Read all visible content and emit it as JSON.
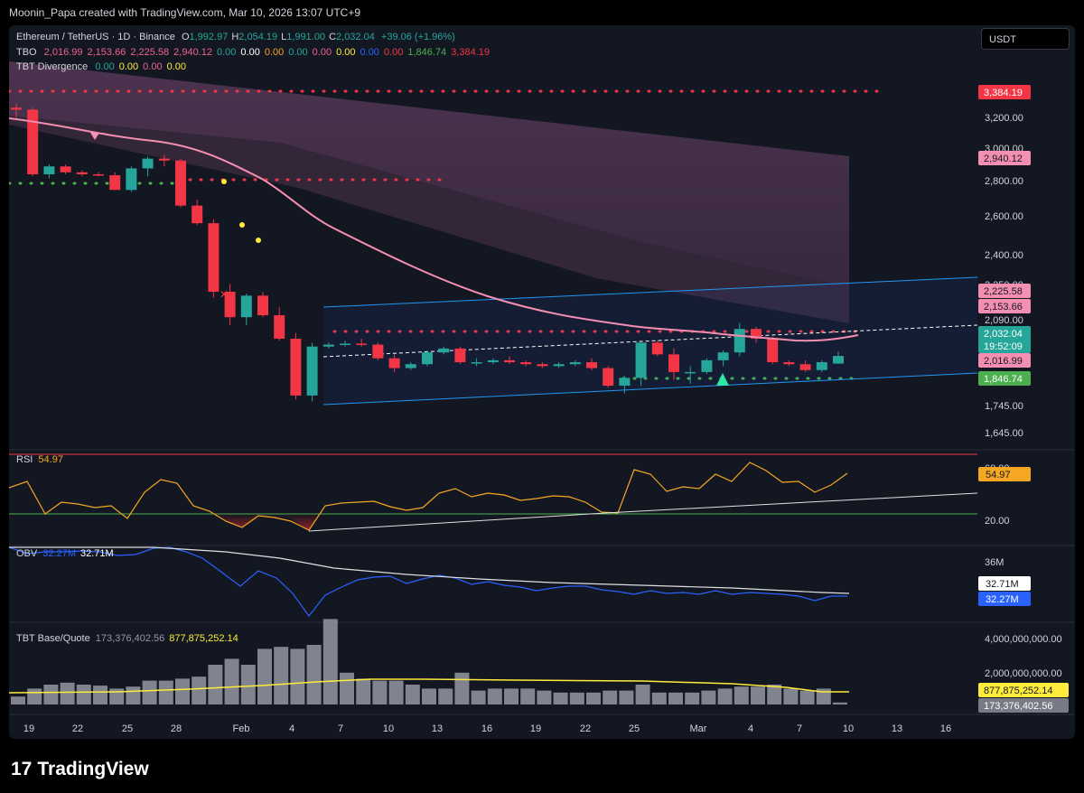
{
  "header": {
    "caption": "Moonin_Papa created with TradingView.com, Mar 10, 2026 13:07 UTC+9",
    "currency_button": "USDT"
  },
  "legend": {
    "symbol": "Ethereum / TetherUS · 1D · Binance",
    "ohlc": [
      {
        "k": "O",
        "v": "1,992.97"
      },
      {
        "k": "H",
        "v": "2,054.19"
      },
      {
        "k": "L",
        "v": "1,991.00"
      },
      {
        "k": "C",
        "v": "2,032.04"
      }
    ],
    "change": "+39.06 (+1.96%)",
    "tbo_label": "TBO",
    "tbo_values": [
      {
        "v": "2,016.99",
        "c": "#f06292"
      },
      {
        "v": "2,153.66",
        "c": "#f06292"
      },
      {
        "v": "2,225.58",
        "c": "#f06292"
      },
      {
        "v": "2,940.12",
        "c": "#f06292"
      },
      {
        "v": "0.00",
        "c": "#26a69a"
      },
      {
        "v": "0.00",
        "c": "#ffffff"
      },
      {
        "v": "0.00",
        "c": "#f5a623"
      },
      {
        "v": "0.00",
        "c": "#26a69a"
      },
      {
        "v": "0.00",
        "c": "#f06292"
      },
      {
        "v": "0.00",
        "c": "#ffeb3b"
      },
      {
        "v": "0.00",
        "c": "#2962ff"
      },
      {
        "v": "0.00",
        "c": "#f23645"
      },
      {
        "v": "1,846.74",
        "c": "#4caf50"
      },
      {
        "v": "3,384.19",
        "c": "#f23645"
      }
    ],
    "div_label": "TBT Divergence",
    "div_values": [
      {
        "v": "0.00",
        "c": "#26a69a"
      },
      {
        "v": "0.00",
        "c": "#ffeb3b"
      },
      {
        "v": "0.00",
        "c": "#f06292"
      },
      {
        "v": "0.00",
        "c": "#ffeb3b"
      }
    ]
  },
  "price_axis": {
    "ticks": [
      "3,200.00",
      "3,000.00",
      "2,800.00",
      "2,600.00",
      "2,400.00",
      "2,250.00",
      "2,090.00",
      "1,745.00",
      "1,645.00"
    ],
    "badges": [
      {
        "label": "3,384.19",
        "bg": "#f23645",
        "fg": "#ffffff"
      },
      {
        "label": "2,940.12",
        "bg": "#f48fb1",
        "fg": "#131722"
      },
      {
        "label": "2,225.58",
        "bg": "#f48fb1",
        "fg": "#131722"
      },
      {
        "label": "2,153.66",
        "bg": "#f48fb1",
        "fg": "#131722"
      },
      {
        "label": "2,032.04",
        "bg": "#26a69a",
        "fg": "#ffffff",
        "sub": "19:52:09"
      },
      {
        "label": "2,016.99",
        "bg": "#f48fb1",
        "fg": "#131722"
      },
      {
        "label": "1,846.74",
        "bg": "#4caf50",
        "fg": "#ffffff"
      }
    ]
  },
  "rsi": {
    "label": "RSI",
    "value": "54.97",
    "ticks": [
      "60.00",
      "20.00"
    ],
    "badge": "54.97"
  },
  "obv": {
    "label": "OBV",
    "value1": "32.27M",
    "value2": "32.71M",
    "ticks": [
      "36M"
    ],
    "badges": [
      "32.71M",
      "32.27M"
    ]
  },
  "basequote": {
    "label": "TBT Base/Quote",
    "value1": "173,376,402.56",
    "value2": "877,875,252.14",
    "ticks": [
      "4,000,000,000.00",
      "2,000,000,000.00"
    ],
    "badges": [
      "877,875,252.14",
      "173,376,402.56"
    ]
  },
  "time_axis": [
    "19",
    "22",
    "25",
    "28",
    "Feb",
    "4",
    "7",
    "10",
    "13",
    "16",
    "19",
    "22",
    "25",
    "Mar",
    "4",
    "7",
    "10",
    "13",
    "16"
  ],
  "colors": {
    "up": "#26a69a",
    "down": "#f23645",
    "ma": "#f48fb1",
    "bg": "#131722"
  },
  "chart_data": {
    "type": "candlestick",
    "title": "Ethereum / TetherUS · 1D · Binance",
    "dates_start": "2026-01-18",
    "candles": [
      [
        3300,
        3320,
        3250,
        3290
      ],
      [
        3290,
        3300,
        2950,
        2960
      ],
      [
        2960,
        3010,
        2940,
        3000
      ],
      [
        3000,
        3010,
        2960,
        2970
      ],
      [
        2970,
        2980,
        2950,
        2960
      ],
      [
        2960,
        2970,
        2950,
        2955
      ],
      [
        2955,
        2970,
        2880,
        2880
      ],
      [
        2880,
        3000,
        2870,
        2990
      ],
      [
        2990,
        3050,
        2950,
        3040
      ],
      [
        3040,
        3060,
        3000,
        3030
      ],
      [
        3030,
        3040,
        2790,
        2800
      ],
      [
        2800,
        2830,
        2700,
        2710
      ],
      [
        2710,
        2730,
        2330,
        2360
      ],
      [
        2360,
        2400,
        2190,
        2230
      ],
      [
        2230,
        2350,
        2190,
        2340
      ],
      [
        2340,
        2360,
        2230,
        2240
      ],
      [
        2240,
        2280,
        2110,
        2120
      ],
      [
        2120,
        2150,
        1810,
        1830
      ],
      [
        1830,
        2100,
        1800,
        2080
      ],
      [
        2080,
        2100,
        2070,
        2090
      ],
      [
        2090,
        2110,
        2080,
        2095
      ],
      [
        2095,
        2120,
        2080,
        2090
      ],
      [
        2090,
        2100,
        2010,
        2020
      ],
      [
        2020,
        2040,
        1950,
        1970
      ],
      [
        1970,
        2000,
        1960,
        1990
      ],
      [
        1990,
        2060,
        1980,
        2050
      ],
      [
        2050,
        2080,
        2040,
        2070
      ],
      [
        2070,
        2080,
        1990,
        2000
      ],
      [
        2000,
        2020,
        1980,
        2000
      ],
      [
        2000,
        2020,
        1990,
        2010
      ],
      [
        2010,
        2030,
        1990,
        2000
      ],
      [
        2000,
        2010,
        1980,
        1990
      ],
      [
        1990,
        2000,
        1970,
        1980
      ],
      [
        1980,
        2000,
        1970,
        1990
      ],
      [
        1990,
        2010,
        1980,
        2000
      ],
      [
        2000,
        2020,
        1960,
        1970
      ],
      [
        1970,
        1980,
        1870,
        1880
      ],
      [
        1880,
        1930,
        1840,
        1920
      ],
      [
        1920,
        2100,
        1880,
        2100
      ],
      [
        2100,
        2110,
        2030,
        2040
      ],
      [
        2040,
        2070,
        1910,
        1950
      ],
      [
        1950,
        1980,
        1890,
        1950
      ],
      [
        1950,
        2020,
        1940,
        2010
      ],
      [
        2010,
        2060,
        1980,
        2050
      ],
      [
        2050,
        2200,
        2030,
        2170
      ],
      [
        2170,
        2180,
        2100,
        2120
      ],
      [
        2120,
        2130,
        1990,
        2000
      ],
      [
        2000,
        2010,
        1980,
        1990
      ],
      [
        1990,
        2010,
        1950,
        1960
      ],
      [
        1960,
        2010,
        1950,
        2000
      ],
      [
        1993,
        2054,
        1991,
        2032
      ]
    ],
    "volume_relative": [
      0.4,
      0.8,
      1.0,
      1.1,
      1.0,
      0.95,
      0.8,
      0.9,
      1.2,
      1.2,
      1.3,
      1.4,
      2.0,
      2.3,
      2.0,
      2.8,
      2.9,
      2.8,
      3.0,
      4.3,
      1.6,
      1.3,
      1.2,
      1.2,
      1.0,
      0.8,
      0.8,
      1.6,
      0.7,
      0.8,
      0.8,
      0.8,
      0.7,
      0.6,
      0.6,
      0.6,
      0.7,
      0.7,
      1.0,
      0.6,
      0.6,
      0.6,
      0.7,
      0.8,
      0.9,
      0.9,
      1.0,
      0.8,
      0.7,
      0.8,
      0.1
    ],
    "ylim": [
      1600,
      3450
    ]
  }
}
